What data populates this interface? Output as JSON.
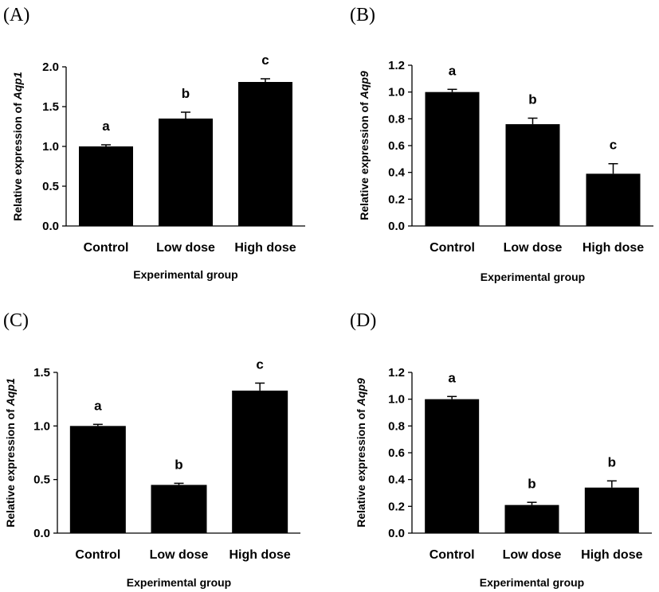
{
  "chart_data": [
    {
      "type": "bar",
      "panel": "(A)",
      "categories": [
        "Control",
        "Low dose",
        "High dose"
      ],
      "values": [
        1.0,
        1.35,
        1.81
      ],
      "errors": [
        0.02,
        0.08,
        0.04
      ],
      "significance": [
        "a",
        "b",
        "c"
      ],
      "xlabel": "Experimental group",
      "ylabel_prefix": "Relative expression of ",
      "ylabel_gene": "Aqp1",
      "ylim": [
        0,
        2.0
      ],
      "yticks": [
        "0.0",
        "0.5",
        "1.0",
        "1.5",
        "2.0"
      ],
      "color": "#000000"
    },
    {
      "type": "bar",
      "panel": "(B)",
      "categories": [
        "Control",
        "Low dose",
        "High dose"
      ],
      "values": [
        1.0,
        0.76,
        0.39
      ],
      "errors": [
        0.02,
        0.045,
        0.075
      ],
      "significance": [
        "a",
        "b",
        "c"
      ],
      "xlabel": "Experimental group",
      "ylabel_prefix": "Relative expression of ",
      "ylabel_gene": "Aqp9",
      "ylim": [
        0,
        1.2
      ],
      "yticks": [
        "0.0",
        "0.2",
        "0.4",
        "0.6",
        "0.8",
        "1.0",
        "1.2"
      ],
      "color": "#000000"
    },
    {
      "type": "bar",
      "panel": "(C)",
      "categories": [
        "Control",
        "Low dose",
        "High dose"
      ],
      "values": [
        1.0,
        0.45,
        1.33
      ],
      "errors": [
        0.015,
        0.015,
        0.07
      ],
      "significance": [
        "a",
        "b",
        "c"
      ],
      "xlabel": "Experimental group",
      "ylabel_prefix": "Relative expression of ",
      "ylabel_gene": "Aqp1",
      "ylim": [
        0,
        1.5
      ],
      "yticks": [
        "0.0",
        "0.5",
        "1.0",
        "1.5"
      ],
      "color": "#000000"
    },
    {
      "type": "bar",
      "panel": "(D)",
      "categories": [
        "Control",
        "Low dose",
        "High dose"
      ],
      "values": [
        1.0,
        0.21,
        0.34
      ],
      "errors": [
        0.02,
        0.02,
        0.05
      ],
      "significance": [
        "a",
        "b",
        "b"
      ],
      "xlabel": "Experimental group",
      "ylabel_prefix": "Relative expression of ",
      "ylabel_gene": "Aqp9",
      "ylim": [
        0,
        1.2
      ],
      "yticks": [
        "0.0",
        "0.2",
        "0.4",
        "0.6",
        "0.8",
        "1.0",
        "1.2"
      ],
      "color": "#000000"
    }
  ]
}
